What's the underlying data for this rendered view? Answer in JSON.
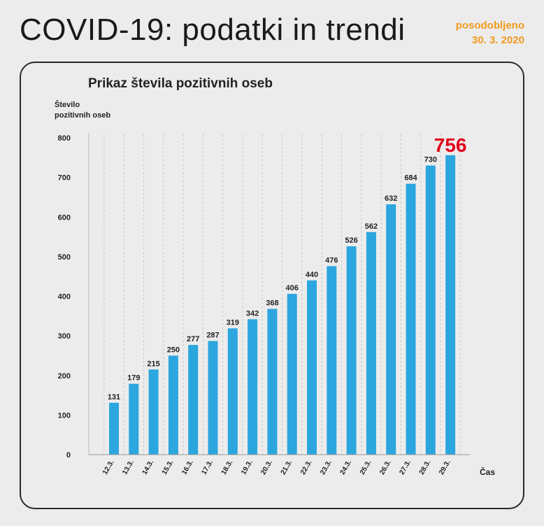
{
  "header": {
    "title": "COVID-19: podatki in trendi",
    "updated_label": "posodobljeno",
    "updated_date": "30. 3. 2020"
  },
  "colors": {
    "bar": "#2ca6df",
    "highlight": "#e3001b",
    "accent": "#f29a1f",
    "frame": "#2a2a2a"
  },
  "chart_data": {
    "type": "bar",
    "title": "Prikaz števila pozitivnih oseb",
    "ylabel_lines": [
      "Število",
      "pozitivnih oseb"
    ],
    "xlabel": "Čas",
    "ylim": [
      0,
      800
    ],
    "yticks": [
      0,
      100,
      200,
      300,
      400,
      500,
      600,
      700,
      800
    ],
    "grid": "vertical dashed",
    "categories": [
      "12.3.",
      "13.3.",
      "14.3.",
      "15.3.",
      "16.3.",
      "17.3.",
      "18.3.",
      "19.3.",
      "20.3.",
      "21.3.",
      "22.3.",
      "23.3.",
      "24.3.",
      "25.3.",
      "26.3.",
      "27.3.",
      "28.3.",
      "29.3."
    ],
    "values": [
      131,
      179,
      215,
      250,
      277,
      287,
      319,
      342,
      368,
      406,
      440,
      476,
      526,
      562,
      632,
      684,
      730,
      756
    ],
    "highlight_last": true
  }
}
